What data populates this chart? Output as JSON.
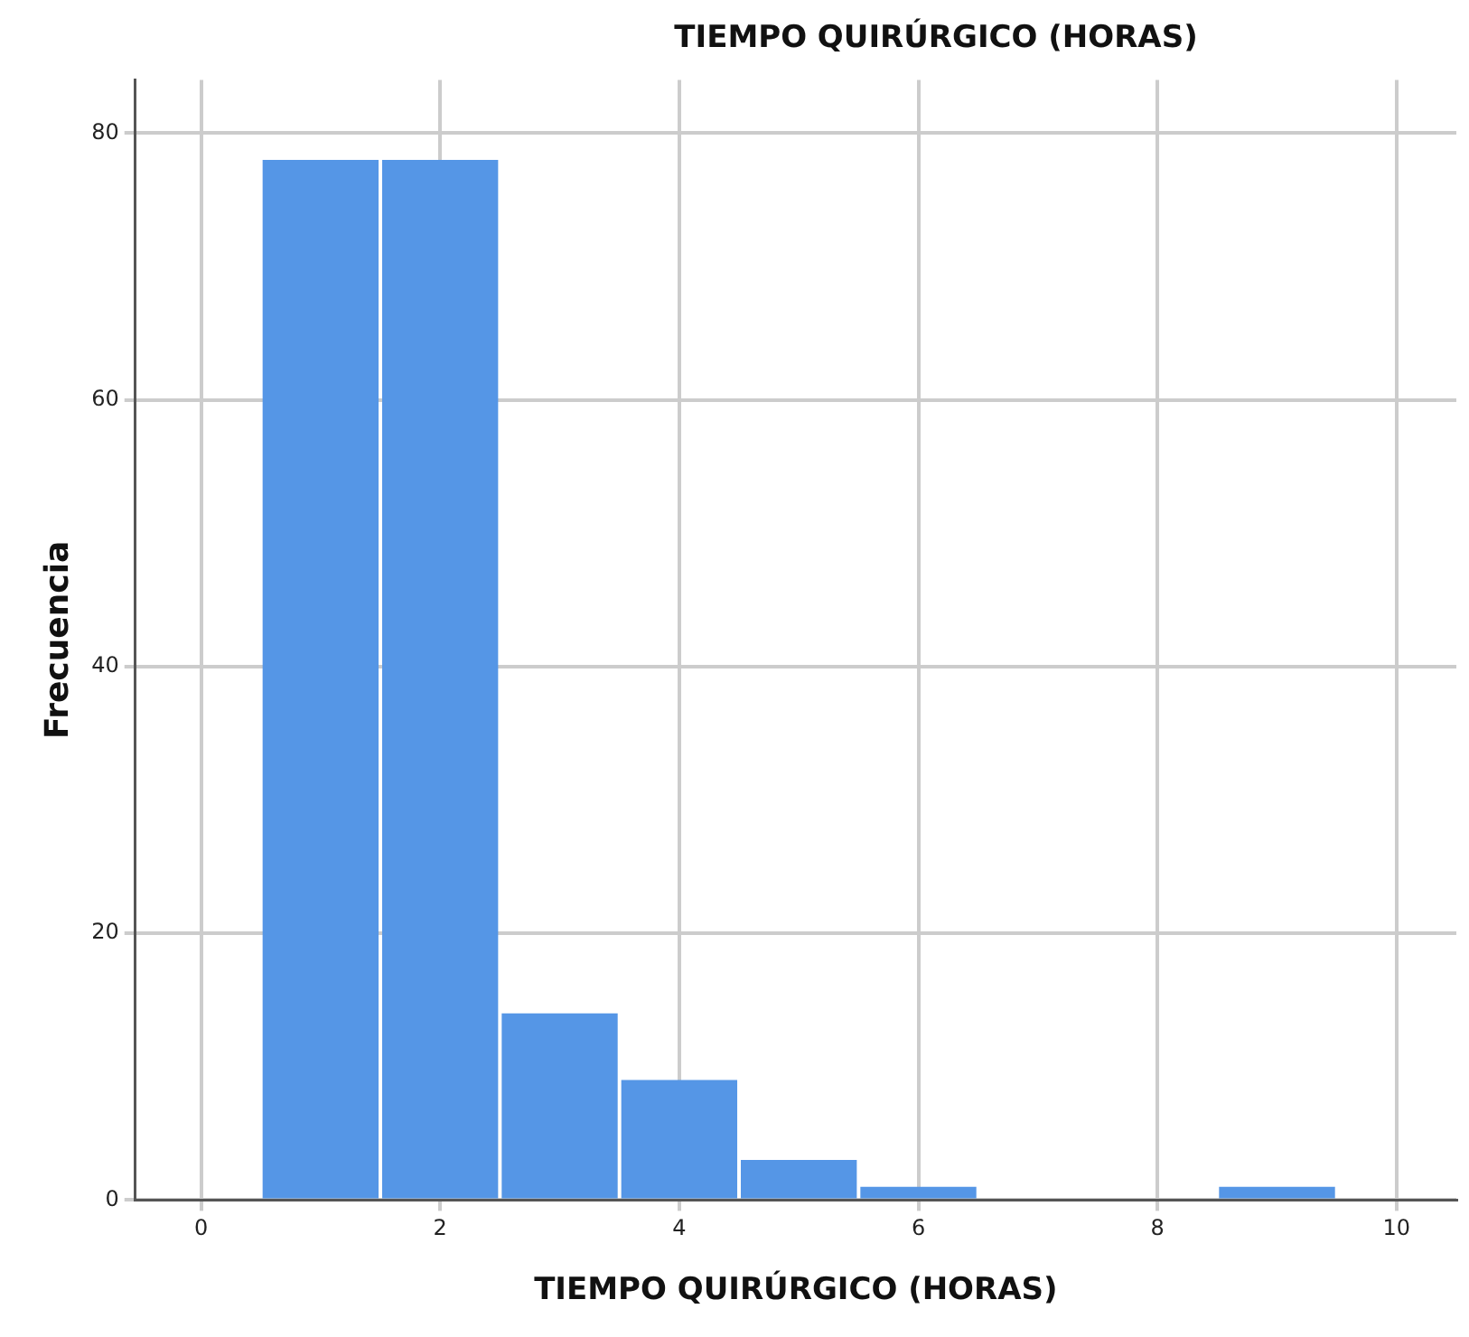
{
  "chart_data": {
    "type": "histogram",
    "title": "TIEMPO QUIRÚRGICO (HORAS)",
    "xlabel": "TIEMPO QUIRÚRGICO (HORAS)",
    "ylabel": "Frecuencia",
    "bins": [
      0.5,
      1.5,
      2.5,
      3.5,
      4.5,
      5.5,
      6.5,
      7.5,
      8.5,
      9.5
    ],
    "values": [
      78,
      78,
      14,
      9,
      3,
      1,
      0,
      0,
      1
    ],
    "color": "#5596e6",
    "xlim": [
      -0.55,
      10.5
    ],
    "xticks": [
      0,
      2,
      4,
      6,
      8,
      10
    ],
    "ylim": [
      0,
      84
    ],
    "yticks": [
      0,
      20,
      40,
      60,
      80
    ],
    "grid": true,
    "legend": false
  }
}
